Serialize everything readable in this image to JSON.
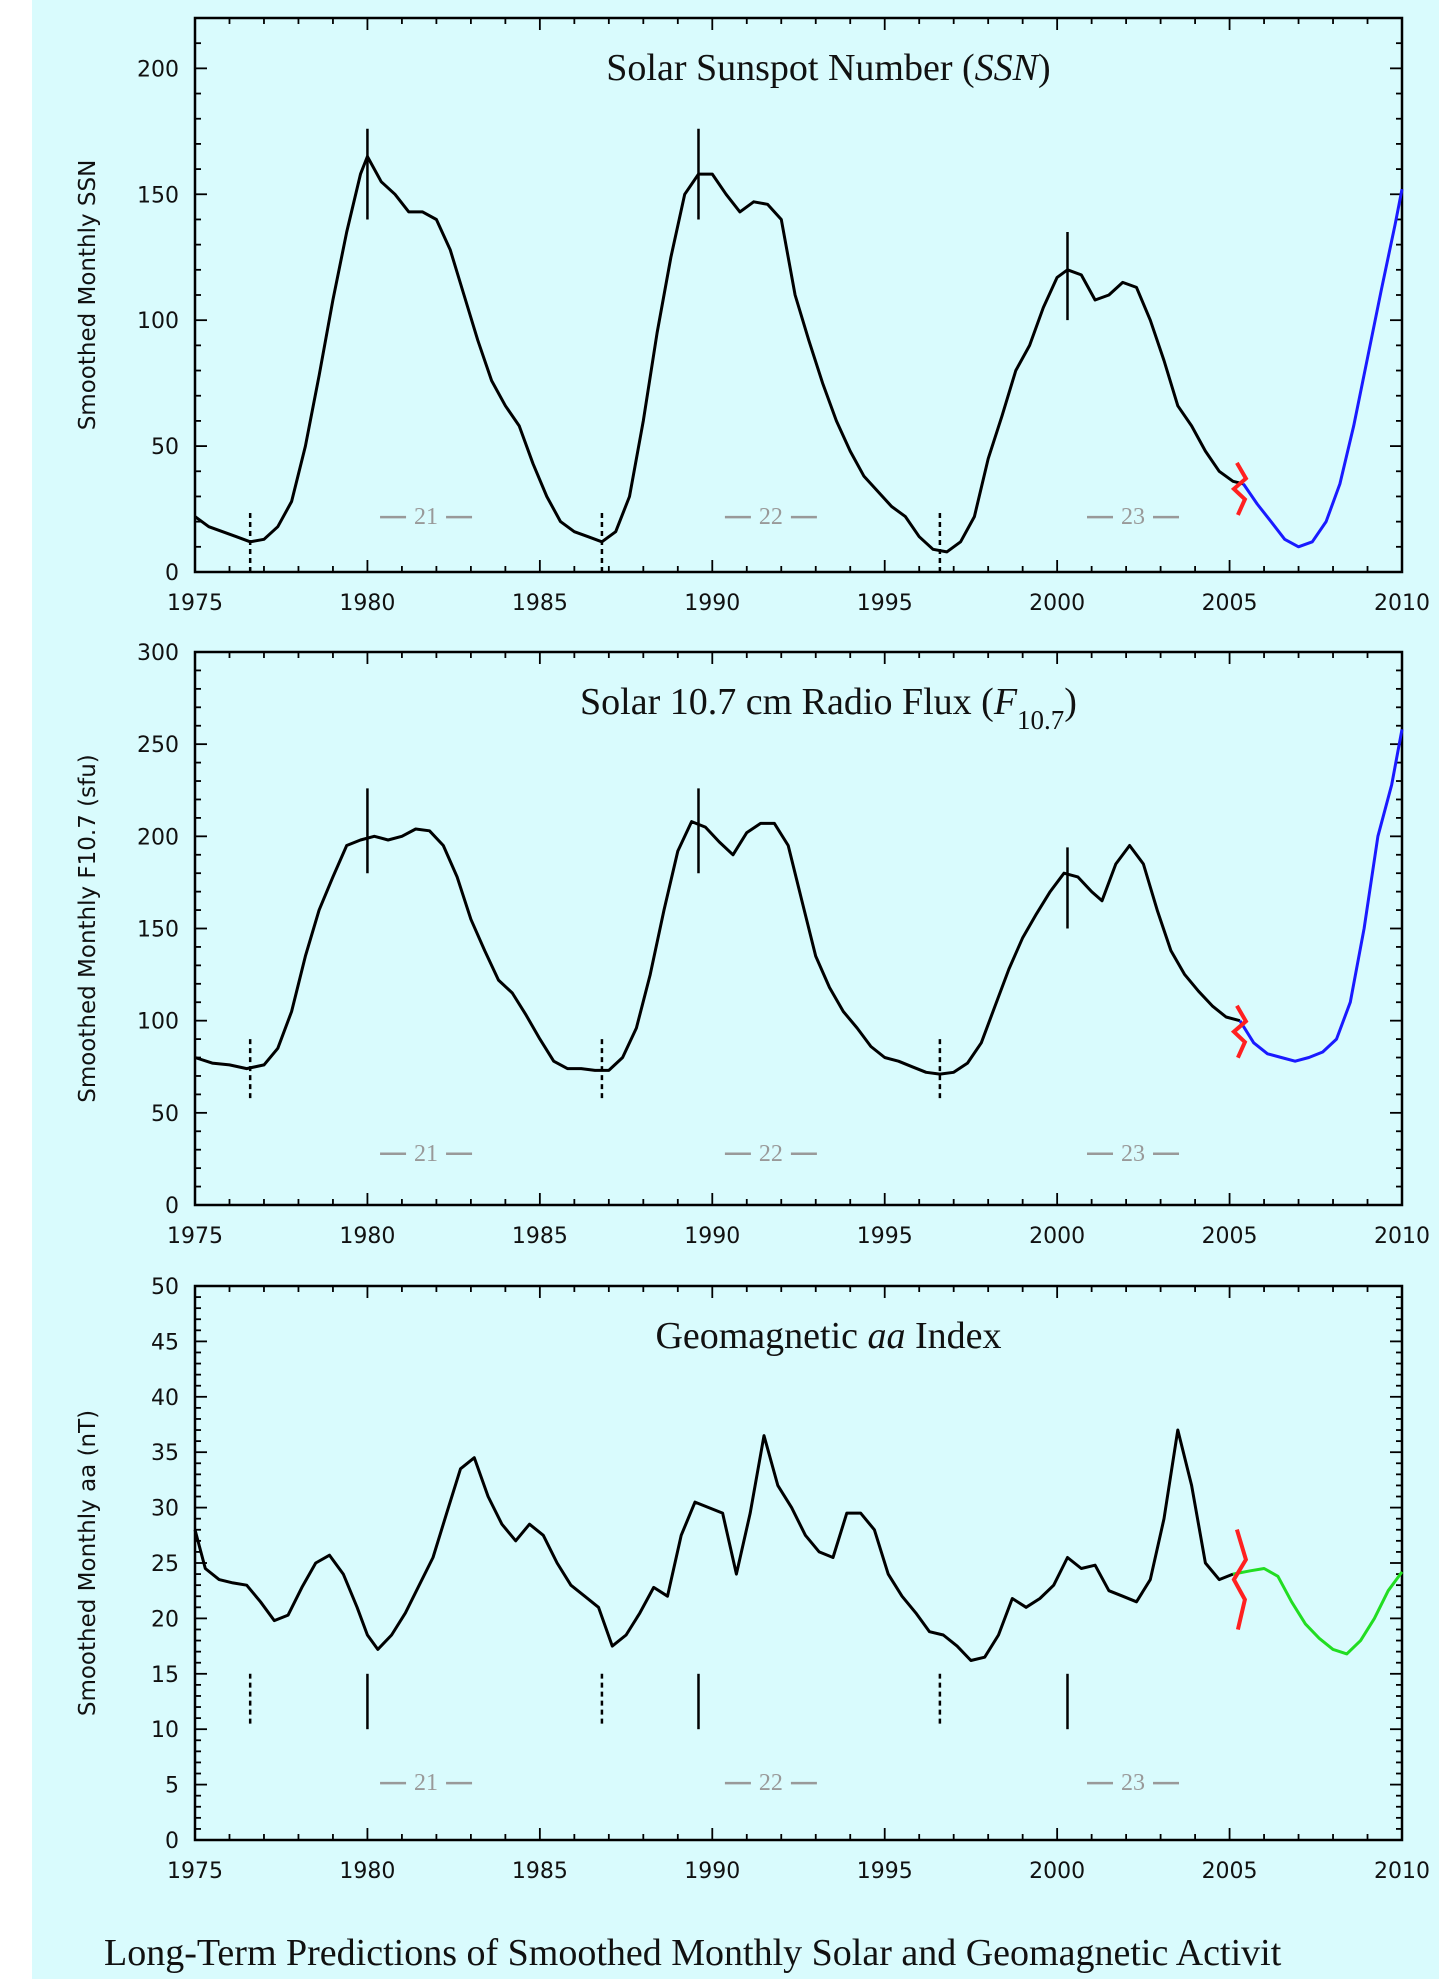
{
  "caption": "Long-Term Predictions of Smoothed Monthly Solar and Geomagnetic Activit",
  "colors": {
    "background": "#d9fbfd",
    "observed": "#000000",
    "predicted_blue": "#1a1aff",
    "predicted_green": "#22dd22",
    "marker": "#ff2020",
    "cycle_label": "#999999"
  },
  "chart_data": [
    {
      "type": "line",
      "title_parts": [
        {
          "text": "Solar Sunspot Number (",
          "italic": false
        },
        {
          "text": "SSN",
          "italic": true
        },
        {
          "text": ")",
          "italic": false
        }
      ],
      "ylabel": "Smoothed Monthly SSN",
      "xlim": [
        1975,
        2010
      ],
      "ylim": [
        0,
        220
      ],
      "yticks": [
        0,
        50,
        100,
        150,
        200
      ],
      "xticks": [
        1975,
        1980,
        1985,
        1990,
        1995,
        2000,
        2005,
        2010
      ],
      "grid": false,
      "observed": [
        [
          1975.0,
          22
        ],
        [
          1975.4,
          18
        ],
        [
          1975.8,
          16
        ],
        [
          1976.2,
          14
        ],
        [
          1976.6,
          12
        ],
        [
          1977.0,
          13
        ],
        [
          1977.4,
          18
        ],
        [
          1977.8,
          28
        ],
        [
          1978.2,
          50
        ],
        [
          1978.6,
          78
        ],
        [
          1979.0,
          108
        ],
        [
          1979.4,
          135
        ],
        [
          1979.8,
          158
        ],
        [
          1980.0,
          165
        ],
        [
          1980.4,
          155
        ],
        [
          1980.8,
          150
        ],
        [
          1981.2,
          143
        ],
        [
          1981.6,
          143
        ],
        [
          1982.0,
          140
        ],
        [
          1982.4,
          128
        ],
        [
          1982.8,
          110
        ],
        [
          1983.2,
          92
        ],
        [
          1983.6,
          76
        ],
        [
          1984.0,
          66
        ],
        [
          1984.4,
          58
        ],
        [
          1984.8,
          43
        ],
        [
          1985.2,
          30
        ],
        [
          1985.6,
          20
        ],
        [
          1986.0,
          16
        ],
        [
          1986.4,
          14
        ],
        [
          1986.8,
          12
        ],
        [
          1987.2,
          16
        ],
        [
          1987.6,
          30
        ],
        [
          1988.0,
          60
        ],
        [
          1988.4,
          95
        ],
        [
          1988.8,
          125
        ],
        [
          1989.2,
          150
        ],
        [
          1989.6,
          158
        ],
        [
          1990.0,
          158
        ],
        [
          1990.4,
          150
        ],
        [
          1990.8,
          143
        ],
        [
          1991.2,
          147
        ],
        [
          1991.6,
          146
        ],
        [
          1992.0,
          140
        ],
        [
          1992.4,
          110
        ],
        [
          1992.8,
          92
        ],
        [
          1993.2,
          75
        ],
        [
          1993.6,
          60
        ],
        [
          1994.0,
          48
        ],
        [
          1994.4,
          38
        ],
        [
          1994.8,
          32
        ],
        [
          1995.2,
          26
        ],
        [
          1995.6,
          22
        ],
        [
          1996.0,
          14
        ],
        [
          1996.4,
          9
        ],
        [
          1996.8,
          8
        ],
        [
          1997.2,
          12
        ],
        [
          1997.6,
          22
        ],
        [
          1998.0,
          45
        ],
        [
          1998.4,
          62
        ],
        [
          1998.8,
          80
        ],
        [
          1999.2,
          90
        ],
        [
          1999.6,
          105
        ],
        [
          2000.0,
          117
        ],
        [
          2000.3,
          120
        ],
        [
          2000.7,
          118
        ],
        [
          2001.1,
          108
        ],
        [
          2001.5,
          110
        ],
        [
          2001.9,
          115
        ],
        [
          2002.3,
          113
        ],
        [
          2002.7,
          100
        ],
        [
          2003.1,
          84
        ],
        [
          2003.5,
          66
        ],
        [
          2003.9,
          58
        ],
        [
          2004.3,
          48
        ],
        [
          2004.7,
          40
        ],
        [
          2005.1,
          36
        ],
        [
          2005.4,
          35
        ]
      ],
      "predicted": [
        [
          2005.4,
          35
        ],
        [
          2005.8,
          27
        ],
        [
          2006.2,
          20
        ],
        [
          2006.6,
          13
        ],
        [
          2007.0,
          10
        ],
        [
          2007.4,
          12
        ],
        [
          2007.8,
          20
        ],
        [
          2008.2,
          35
        ],
        [
          2008.6,
          58
        ],
        [
          2009.0,
          85
        ],
        [
          2009.4,
          112
        ],
        [
          2009.8,
          138
        ],
        [
          2010.0,
          152
        ]
      ],
      "marker": {
        "x": 2005.3,
        "y": 33
      },
      "vlines_solid": [
        {
          "x": 1980.0,
          "y1": 140,
          "y2": 176
        },
        {
          "x": 1989.6,
          "y1": 140,
          "y2": 176
        },
        {
          "x": 2000.3,
          "y1": 100,
          "y2": 135
        }
      ],
      "vlines_dashed": [
        {
          "x": 1976.6,
          "y1": 0,
          "y2": 24
        },
        {
          "x": 1986.8,
          "y1": 0,
          "y2": 24
        },
        {
          "x": 1996.6,
          "y1": 0,
          "y2": 24
        }
      ],
      "cycle_labels": [
        {
          "text": "21",
          "x": 1981.7,
          "y": 19
        },
        {
          "text": "22",
          "x": 1991.7,
          "y": 19
        },
        {
          "text": "23",
          "x": 2002.2,
          "y": 19
        }
      ]
    },
    {
      "type": "line",
      "title_parts": [
        {
          "text": "Solar 10.7 cm Radio Flux (",
          "italic": false
        },
        {
          "text": "F",
          "italic": true
        },
        {
          "text": "10.7",
          "italic": false,
          "sub": true
        },
        {
          "text": ")",
          "italic": false
        }
      ],
      "ylabel": "Smoothed Monthly F10.7 (sfu)",
      "xlim": [
        1975,
        2010
      ],
      "ylim": [
        0,
        300
      ],
      "yticks": [
        0,
        50,
        100,
        150,
        200,
        250,
        300
      ],
      "xticks": [
        1975,
        1980,
        1985,
        1990,
        1995,
        2000,
        2005,
        2010
      ],
      "grid": false,
      "observed": [
        [
          1975.0,
          80
        ],
        [
          1975.5,
          77
        ],
        [
          1976.0,
          76
        ],
        [
          1976.5,
          74
        ],
        [
          1977.0,
          76
        ],
        [
          1977.4,
          85
        ],
        [
          1977.8,
          105
        ],
        [
          1978.2,
          135
        ],
        [
          1978.6,
          160
        ],
        [
          1979.0,
          178
        ],
        [
          1979.4,
          195
        ],
        [
          1979.8,
          198
        ],
        [
          1980.2,
          200
        ],
        [
          1980.6,
          198
        ],
        [
          1981.0,
          200
        ],
        [
          1981.4,
          204
        ],
        [
          1981.8,
          203
        ],
        [
          1982.2,
          195
        ],
        [
          1982.6,
          178
        ],
        [
          1983.0,
          155
        ],
        [
          1983.4,
          138
        ],
        [
          1983.8,
          122
        ],
        [
          1984.2,
          115
        ],
        [
          1984.6,
          103
        ],
        [
          1985.0,
          90
        ],
        [
          1985.4,
          78
        ],
        [
          1985.8,
          74
        ],
        [
          1986.2,
          74
        ],
        [
          1986.6,
          73
        ],
        [
          1987.0,
          73
        ],
        [
          1987.4,
          80
        ],
        [
          1987.8,
          96
        ],
        [
          1988.2,
          125
        ],
        [
          1988.6,
          160
        ],
        [
          1989.0,
          192
        ],
        [
          1989.4,
          208
        ],
        [
          1989.8,
          205
        ],
        [
          1990.2,
          197
        ],
        [
          1990.6,
          190
        ],
        [
          1991.0,
          202
        ],
        [
          1991.4,
          207
        ],
        [
          1991.8,
          207
        ],
        [
          1992.2,
          195
        ],
        [
          1992.6,
          165
        ],
        [
          1993.0,
          135
        ],
        [
          1993.4,
          118
        ],
        [
          1993.8,
          105
        ],
        [
          1994.2,
          96
        ],
        [
          1994.6,
          86
        ],
        [
          1995.0,
          80
        ],
        [
          1995.4,
          78
        ],
        [
          1995.8,
          75
        ],
        [
          1996.2,
          72
        ],
        [
          1996.6,
          71
        ],
        [
          1997.0,
          72
        ],
        [
          1997.4,
          77
        ],
        [
          1997.8,
          88
        ],
        [
          1998.2,
          108
        ],
        [
          1998.6,
          128
        ],
        [
          1999.0,
          145
        ],
        [
          1999.4,
          158
        ],
        [
          1999.8,
          170
        ],
        [
          2000.2,
          180
        ],
        [
          2000.6,
          178
        ],
        [
          2001.0,
          170
        ],
        [
          2001.3,
          165
        ],
        [
          2001.7,
          185
        ],
        [
          2002.1,
          195
        ],
        [
          2002.5,
          185
        ],
        [
          2002.9,
          160
        ],
        [
          2003.3,
          138
        ],
        [
          2003.7,
          125
        ],
        [
          2004.1,
          116
        ],
        [
          2004.5,
          108
        ],
        [
          2004.9,
          102
        ],
        [
          2005.3,
          100
        ]
      ],
      "predicted": [
        [
          2005.3,
          100
        ],
        [
          2005.7,
          88
        ],
        [
          2006.1,
          82
        ],
        [
          2006.5,
          80
        ],
        [
          2006.9,
          78
        ],
        [
          2007.3,
          80
        ],
        [
          2007.7,
          83
        ],
        [
          2008.1,
          90
        ],
        [
          2008.5,
          110
        ],
        [
          2008.9,
          150
        ],
        [
          2009.3,
          200
        ],
        [
          2009.7,
          228
        ],
        [
          2010.0,
          258
        ]
      ],
      "marker": {
        "x": 2005.3,
        "y": 94
      },
      "vlines_solid": [
        {
          "x": 1980.0,
          "y1": 180,
          "y2": 226
        },
        {
          "x": 1989.6,
          "y1": 180,
          "y2": 226
        },
        {
          "x": 2000.3,
          "y1": 150,
          "y2": 194
        }
      ],
      "vlines_dashed": [
        {
          "x": 1976.6,
          "y1": 58,
          "y2": 92
        },
        {
          "x": 1986.8,
          "y1": 58,
          "y2": 92
        },
        {
          "x": 1996.6,
          "y1": 58,
          "y2": 92
        }
      ],
      "cycle_labels": [
        {
          "text": "21",
          "x": 1981.7,
          "y": 24
        },
        {
          "text": "22",
          "x": 1991.7,
          "y": 24
        },
        {
          "text": "23",
          "x": 2002.2,
          "y": 24
        }
      ]
    },
    {
      "type": "line",
      "title_parts": [
        {
          "text": "Geomagnetic ",
          "italic": false
        },
        {
          "text": "aa",
          "italic": true
        },
        {
          "text": " Index",
          "italic": false
        }
      ],
      "ylabel": "Smoothed Monthly aa (nT)",
      "xlim": [
        1975,
        2010
      ],
      "ylim": [
        0,
        50
      ],
      "yticks": [
        0,
        5,
        10,
        15,
        20,
        25,
        30,
        35,
        40,
        45,
        50
      ],
      "xticks": [
        1975,
        1980,
        1985,
        1990,
        1995,
        2000,
        2005,
        2010
      ],
      "grid": false,
      "observed": [
        [
          1975.0,
          28
        ],
        [
          1975.3,
          24.5
        ],
        [
          1975.7,
          23.5
        ],
        [
          1976.1,
          23.2
        ],
        [
          1976.5,
          23
        ],
        [
          1976.9,
          21.5
        ],
        [
          1977.3,
          19.8
        ],
        [
          1977.7,
          20.3
        ],
        [
          1978.1,
          22.8
        ],
        [
          1978.5,
          25
        ],
        [
          1978.9,
          25.7
        ],
        [
          1979.3,
          24
        ],
        [
          1979.7,
          21
        ],
        [
          1980.0,
          18.5
        ],
        [
          1980.3,
          17.2
        ],
        [
          1980.7,
          18.5
        ],
        [
          1981.1,
          20.5
        ],
        [
          1981.5,
          23
        ],
        [
          1981.9,
          25.5
        ],
        [
          1982.3,
          29.5
        ],
        [
          1982.7,
          33.5
        ],
        [
          1983.1,
          34.5
        ],
        [
          1983.5,
          31
        ],
        [
          1983.9,
          28.5
        ],
        [
          1984.3,
          27
        ],
        [
          1984.7,
          28.5
        ],
        [
          1985.1,
          27.5
        ],
        [
          1985.5,
          25
        ],
        [
          1985.9,
          23
        ],
        [
          1986.3,
          22
        ],
        [
          1986.7,
          21
        ],
        [
          1987.1,
          17.5
        ],
        [
          1987.5,
          18.5
        ],
        [
          1987.9,
          20.5
        ],
        [
          1988.3,
          22.8
        ],
        [
          1988.7,
          22
        ],
        [
          1989.1,
          27.5
        ],
        [
          1989.5,
          30.5
        ],
        [
          1989.9,
          30
        ],
        [
          1990.3,
          29.5
        ],
        [
          1990.7,
          24
        ],
        [
          1991.1,
          29.5
        ],
        [
          1991.5,
          36.5
        ],
        [
          1991.9,
          32
        ],
        [
          1992.3,
          30
        ],
        [
          1992.7,
          27.5
        ],
        [
          1993.1,
          26
        ],
        [
          1993.5,
          25.5
        ],
        [
          1993.9,
          29.5
        ],
        [
          1994.3,
          29.5
        ],
        [
          1994.7,
          28
        ],
        [
          1995.1,
          24
        ],
        [
          1995.5,
          22
        ],
        [
          1995.9,
          20.5
        ],
        [
          1996.3,
          18.8
        ],
        [
          1996.7,
          18.5
        ],
        [
          1997.1,
          17.5
        ],
        [
          1997.5,
          16.2
        ],
        [
          1997.9,
          16.5
        ],
        [
          1998.3,
          18.5
        ],
        [
          1998.7,
          21.8
        ],
        [
          1999.1,
          21
        ],
        [
          1999.5,
          21.8
        ],
        [
          1999.9,
          23
        ],
        [
          2000.3,
          25.5
        ],
        [
          2000.7,
          24.5
        ],
        [
          2001.1,
          24.8
        ],
        [
          2001.5,
          22.5
        ],
        [
          2001.9,
          22
        ],
        [
          2002.3,
          21.5
        ],
        [
          2002.7,
          23.5
        ],
        [
          2003.1,
          29
        ],
        [
          2003.5,
          37
        ],
        [
          2003.9,
          32
        ],
        [
          2004.3,
          25
        ],
        [
          2004.7,
          23.5
        ],
        [
          2005.1,
          24
        ]
      ],
      "predicted": [
        [
          2005.1,
          24
        ],
        [
          2005.6,
          24.3
        ],
        [
          2006.0,
          24.5
        ],
        [
          2006.4,
          23.8
        ],
        [
          2006.8,
          21.5
        ],
        [
          2007.2,
          19.5
        ],
        [
          2007.6,
          18.2
        ],
        [
          2008.0,
          17.2
        ],
        [
          2008.4,
          16.8
        ],
        [
          2008.8,
          18
        ],
        [
          2009.2,
          20
        ],
        [
          2009.6,
          22.5
        ],
        [
          2010.0,
          24.2
        ]
      ],
      "marker": {
        "x": 2005.3,
        "y": 23.5
      },
      "vlines_solid": [
        {
          "x": 1980.0,
          "y1": 10,
          "y2": 15
        },
        {
          "x": 1989.6,
          "y1": 10,
          "y2": 15
        },
        {
          "x": 2000.3,
          "y1": 10,
          "y2": 15
        }
      ],
      "vlines_dashed": [
        {
          "x": 1976.6,
          "y1": 10.5,
          "y2": 15
        },
        {
          "x": 1986.8,
          "y1": 10.5,
          "y2": 15
        },
        {
          "x": 1996.6,
          "y1": 10.5,
          "y2": 15
        }
      ],
      "cycle_labels": [
        {
          "text": "21",
          "x": 1981.7,
          "y": 4.5
        },
        {
          "text": "22",
          "x": 1991.7,
          "y": 4.5
        },
        {
          "text": "23",
          "x": 2002.2,
          "y": 4.5
        }
      ]
    }
  ]
}
